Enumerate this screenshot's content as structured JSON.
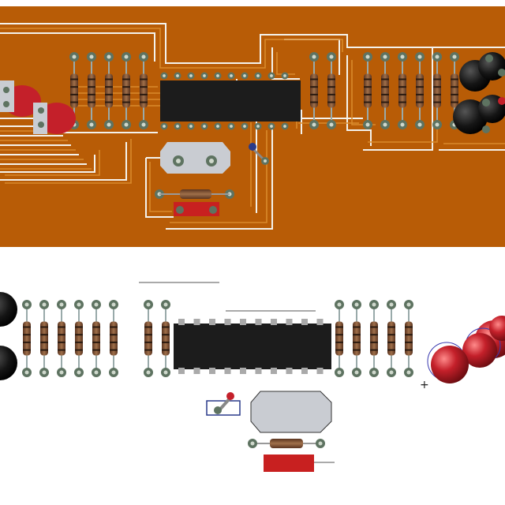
{
  "colors": {
    "board": "#b85c06",
    "trace": "#d2801f",
    "clearance": "#f4f2ec",
    "ic_body": "#1c1c1c",
    "pad": "#5e7361",
    "pad_hole": "#cfd8cc",
    "resistor_body": "#8a5a3a",
    "led_red": "#c4202a",
    "crystal": "#c9ccd2",
    "capacitor_red": "#c82020",
    "connector_black": "#111111"
  },
  "top_view": {
    "name": "copper-layer-view",
    "resistors_left_count": 5,
    "resistors_right_count": 6,
    "ic_pins_per_side": 10
  },
  "bottom_view": {
    "name": "component-3d-view",
    "resistors_left_count": 6,
    "resistors_mid_count": 2,
    "resistors_right_count": 5,
    "ic_pins_per_side": 10,
    "polarity_mark": "+"
  }
}
